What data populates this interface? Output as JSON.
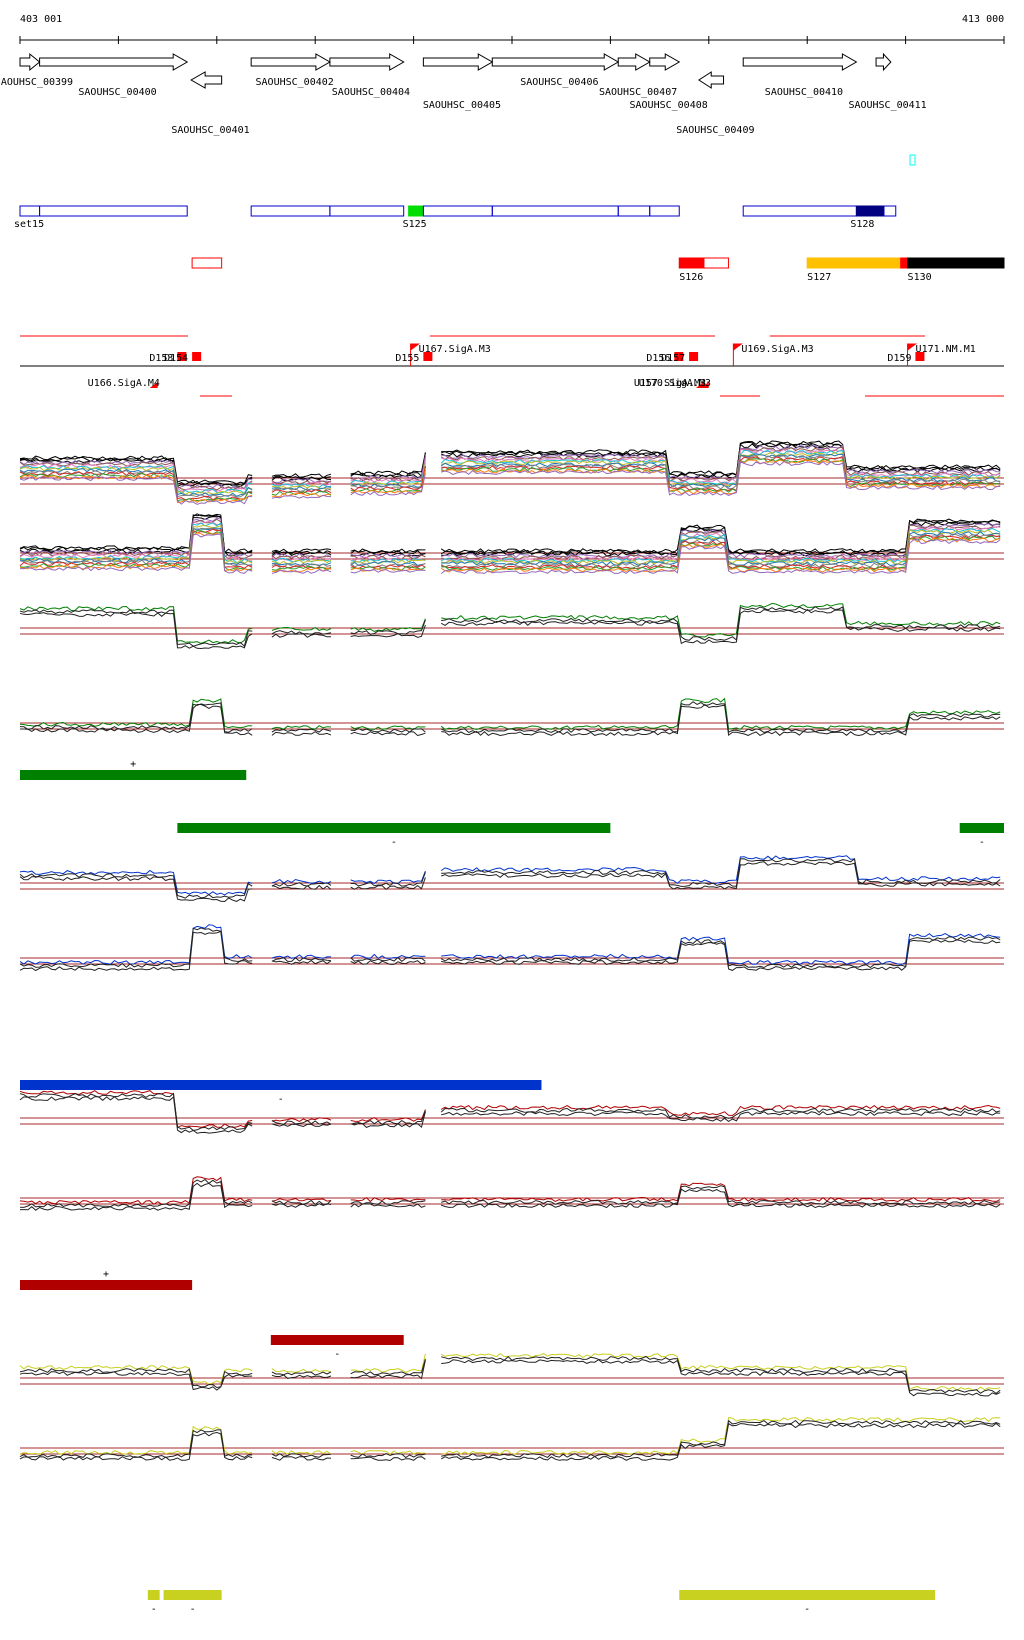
{
  "coords": {
    "start_label": "403 001",
    "end_label": "413 000"
  },
  "colors": {
    "green": "#008000",
    "blue": "#0033cc",
    "red": "#b00000",
    "yellow": "#c8d020",
    "seg_outline": "#0000cc",
    "seg_green": "#00dd00",
    "seg_navy": "#000080",
    "bright_red": "#ff0000",
    "orange": "#ffc000",
    "black": "#000000",
    "cyan": "#00ffff",
    "threshold": "#a52a2a"
  },
  "genes": [
    {
      "name": "SAOUHSC_00399",
      "start": 403001,
      "end": 403200,
      "strand": "+",
      "row": 0
    },
    {
      "name": "SAOUHSC_00400",
      "start": 403200,
      "end": 404700,
      "strand": "+",
      "row": 1
    },
    {
      "name": "SAOUHSC_00401",
      "start": 404740,
      "end": 405050,
      "strand": "-",
      "row": 2
    },
    {
      "name": "SAOUHSC_00402",
      "start": 405350,
      "end": 406150,
      "strand": "+",
      "row": 0
    },
    {
      "name": "SAOUHSC_00404",
      "start": 406150,
      "end": 406900,
      "strand": "+",
      "row": 1
    },
    {
      "name": "SAOUHSC_00405",
      "start": 407100,
      "end": 407800,
      "strand": "+",
      "row": 2
    },
    {
      "name": "SAOUHSC_00406",
      "start": 407800,
      "end": 409080,
      "strand": "+",
      "row": 0
    },
    {
      "name": "SAOUHSC_00407",
      "start": 409080,
      "end": 409400,
      "strand": "+",
      "row": 1
    },
    {
      "name": "SAOUHSC_00408",
      "start": 409400,
      "end": 409700,
      "strand": "+",
      "row": 2
    },
    {
      "name": "SAOUHSC_00409",
      "start": 409900,
      "end": 410150,
      "strand": "-",
      "row": 2
    },
    {
      "name": "SAOUHSC_00410",
      "start": 410350,
      "end": 411500,
      "strand": "+",
      "row": 1
    },
    {
      "name": "SAOUHSC_00411",
      "start": 411700,
      "end": 411850,
      "strand": "+",
      "row": 2
    }
  ],
  "segments_row1": [
    {
      "label": "set15",
      "start": 403001,
      "end": 403200,
      "fill": "none"
    },
    {
      "label": "",
      "start": 403200,
      "end": 404700,
      "fill": "none"
    },
    {
      "label": "",
      "start": 405350,
      "end": 406150,
      "fill": "none"
    },
    {
      "label": "",
      "start": 406150,
      "end": 406900,
      "fill": "none"
    },
    {
      "label": "S125",
      "start": 406950,
      "end": 407100,
      "fill": "green"
    },
    {
      "label": "",
      "start": 407100,
      "end": 407800,
      "fill": "none"
    },
    {
      "label": "",
      "start": 407800,
      "end": 409080,
      "fill": "none"
    },
    {
      "label": "",
      "start": 409080,
      "end": 409400,
      "fill": "none"
    },
    {
      "label": "",
      "start": 409400,
      "end": 409700,
      "fill": "none"
    },
    {
      "label": "",
      "start": 410350,
      "end": 411500,
      "fill": "none"
    },
    {
      "label": "S128",
      "start": 411500,
      "end": 411780,
      "fill": "navy"
    },
    {
      "label": "",
      "start": 411780,
      "end": 411900,
      "fill": "none"
    }
  ],
  "segments_row2": [
    {
      "label": "",
      "start": 404750,
      "end": 405050,
      "fill": "outline-red"
    },
    {
      "label": "S126",
      "start": 409700,
      "end": 409950,
      "fill": "red"
    },
    {
      "label": "",
      "start": 409950,
      "end": 410200,
      "fill": "outline-red"
    },
    {
      "label": "S127",
      "start": 411000,
      "end": 411950,
      "fill": "orange"
    },
    {
      "label": "",
      "start": 411950,
      "end": 412020,
      "fill": "red"
    },
    {
      "label": "S130",
      "start": 412020,
      "end": 413000,
      "fill": "black"
    }
  ],
  "promoters": [
    {
      "label": "U167.SigA.M3",
      "pos": 406970
    },
    {
      "label": "U169.SigA.M3",
      "pos": 410250
    },
    {
      "label": "U171.NM.M1",
      "pos": 412020
    }
  ],
  "terminators": [
    {
      "label": "D153",
      "pos": 404600
    },
    {
      "label": "D154",
      "pos": 404750
    },
    {
      "label": "D155",
      "pos": 407100
    },
    {
      "label": "D156",
      "pos": 409650
    },
    {
      "label": "D157",
      "pos": 409800
    },
    {
      "label": "D159",
      "pos": 412100
    }
  ],
  "reverse_labels": [
    {
      "label": "U166.SigA.M4",
      "pos": 404400
    },
    {
      "label": "U157.SigA.M3",
      "pos": 409950
    },
    {
      "label": "U170.SigA.M3",
      "pos": 410000
    }
  ],
  "conditions": [
    {
      "color": "green",
      "bars": [
        {
          "start": 403001,
          "end": 405300,
          "row": 0,
          "sign": "+"
        },
        {
          "start": 404600,
          "end": 409000,
          "row": 1,
          "sign": "-"
        },
        {
          "start": 412550,
          "end": 413000,
          "row": 1,
          "sign": "-"
        }
      ]
    },
    {
      "color": "blue",
      "bars": [
        {
          "start": 403001,
          "end": 408300,
          "row": 0,
          "sign": "-"
        }
      ]
    },
    {
      "color": "red",
      "bars": [
        {
          "start": 403001,
          "end": 404750,
          "row": 0,
          "sign": "+"
        },
        {
          "start": 405550,
          "end": 406900,
          "row": 1,
          "sign": "-"
        }
      ]
    },
    {
      "color": "yellow",
      "bars": [
        {
          "start": 404300,
          "end": 404420,
          "row": 0,
          "sign": "-"
        },
        {
          "start": 404460,
          "end": 405050,
          "row": 0,
          "sign": "-"
        },
        {
          "start": 409700,
          "end": 412300,
          "row": 0,
          "sign": "-"
        }
      ]
    }
  ],
  "chart_data": {
    "type": "line",
    "x_range": [
      403001,
      413000
    ],
    "gaps": [
      [
        405400,
        405550
      ],
      [
        406200,
        406350
      ],
      [
        407150,
        407250
      ]
    ],
    "tracks": [
      {
        "color": "multi",
        "strand": "+",
        "levels": [
          [
            403001,
            0.6
          ],
          [
            404600,
            0.2
          ],
          [
            405300,
            0.3
          ],
          [
            406300,
            0.35
          ],
          [
            407100,
            0.7
          ],
          [
            409600,
            0.35
          ],
          [
            410300,
            0.85
          ],
          [
            411400,
            0.45
          ],
          [
            413000,
            0.4
          ]
        ]
      },
      {
        "color": "multi",
        "strand": "-",
        "levels": [
          [
            403001,
            0.35
          ],
          [
            404750,
            0.9
          ],
          [
            405050,
            0.3
          ],
          [
            409700,
            0.7
          ],
          [
            410200,
            0.3
          ],
          [
            412020,
            0.8
          ],
          [
            413000,
            0.8
          ]
        ]
      },
      {
        "color": "green",
        "strand": "+",
        "levels": [
          [
            403001,
            0.7
          ],
          [
            404600,
            0.15
          ],
          [
            405300,
            0.35
          ],
          [
            407100,
            0.55
          ],
          [
            409700,
            0.25
          ],
          [
            410300,
            0.75
          ],
          [
            411400,
            0.45
          ],
          [
            413000,
            0.45
          ]
        ]
      },
      {
        "color": "green",
        "strand": "-",
        "levels": [
          [
            403001,
            0.35
          ],
          [
            404750,
            0.75
          ],
          [
            405050,
            0.3
          ],
          [
            409700,
            0.75
          ],
          [
            410200,
            0.3
          ],
          [
            412020,
            0.55
          ],
          [
            413000,
            0.6
          ]
        ]
      },
      {
        "color": "blue",
        "strand": "+",
        "levels": [
          [
            403001,
            0.55
          ],
          [
            404600,
            0.2
          ],
          [
            405300,
            0.4
          ],
          [
            407100,
            0.6
          ],
          [
            409600,
            0.4
          ],
          [
            410300,
            0.8
          ],
          [
            411500,
            0.45
          ],
          [
            413000,
            0.35
          ]
        ]
      },
      {
        "color": "blue",
        "strand": "-",
        "levels": [
          [
            403001,
            0.3
          ],
          [
            404750,
            0.9
          ],
          [
            405050,
            0.4
          ],
          [
            409700,
            0.7
          ],
          [
            410200,
            0.3
          ],
          [
            412020,
            0.75
          ],
          [
            413000,
            0.75
          ]
        ]
      },
      {
        "color": "red",
        "strand": "+",
        "levels": [
          [
            403001,
            0.8
          ],
          [
            404600,
            0.25
          ],
          [
            405300,
            0.35
          ],
          [
            407100,
            0.55
          ],
          [
            409600,
            0.45
          ],
          [
            410300,
            0.55
          ],
          [
            413000,
            0.4
          ]
        ]
      },
      {
        "color": "red",
        "strand": "-",
        "levels": [
          [
            403001,
            0.3
          ],
          [
            404750,
            0.7
          ],
          [
            405050,
            0.35
          ],
          [
            407100,
            0.35
          ],
          [
            409700,
            0.6
          ],
          [
            410200,
            0.35
          ],
          [
            413000,
            0.5
          ]
        ]
      },
      {
        "color": "yellow",
        "strand": "+",
        "levels": [
          [
            403001,
            0.55
          ],
          [
            404750,
            0.3
          ],
          [
            405050,
            0.5
          ],
          [
            407100,
            0.75
          ],
          [
            409700,
            0.55
          ],
          [
            412020,
            0.2
          ],
          [
            413000,
            0.2
          ]
        ]
      },
      {
        "color": "yellow",
        "strand": "-",
        "levels": [
          [
            403001,
            0.3
          ],
          [
            404750,
            0.7
          ],
          [
            405050,
            0.3
          ],
          [
            409700,
            0.5
          ],
          [
            410200,
            0.85
          ],
          [
            412020,
            0.85
          ],
          [
            413000,
            0.9
          ]
        ]
      }
    ]
  }
}
